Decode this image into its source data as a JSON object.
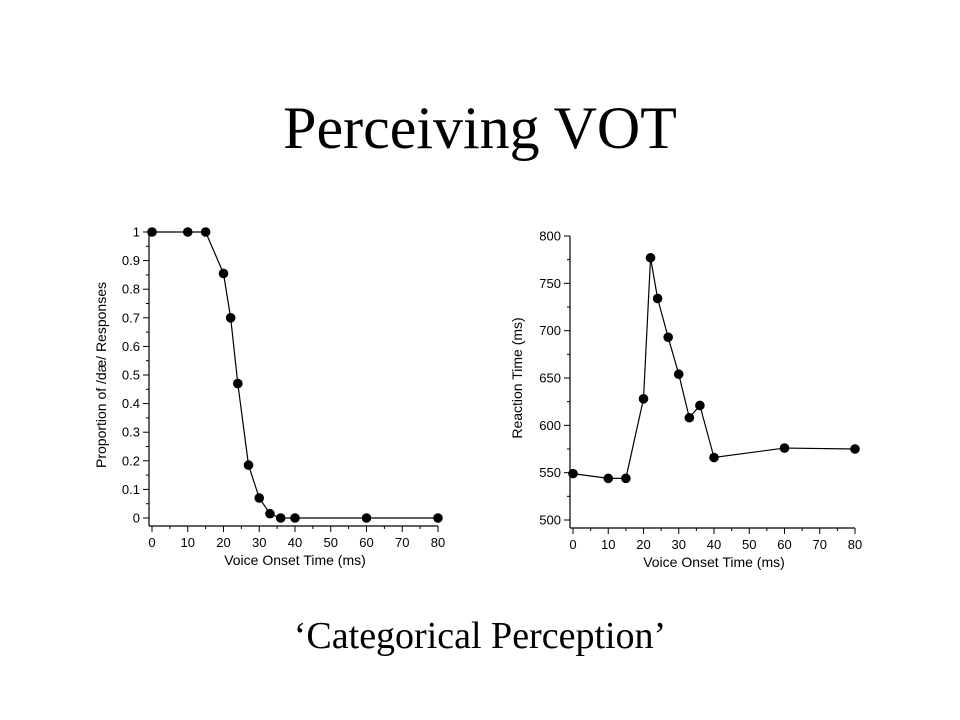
{
  "slide": {
    "title": "Perceiving VOT",
    "caption": "‘Categorical Perception’"
  },
  "chart_data": [
    {
      "type": "line",
      "xlabel": "Voice Onset Time (ms)",
      "ylabel": "Proportion of /dæ/ Responses",
      "xlim": [
        0,
        80
      ],
      "ylim": [
        0,
        1
      ],
      "xticks": [
        "0",
        "10",
        "20",
        "30",
        "40",
        "50",
        "60",
        "70",
        "80"
      ],
      "yticks": [
        "0",
        "0.1",
        "0.2",
        "0.3",
        "0.4",
        "0.5",
        "0.6",
        "0.7",
        "0.8",
        "0.9",
        "1"
      ],
      "x": [
        0,
        10,
        15,
        20,
        22,
        24,
        27,
        30,
        33,
        36,
        40,
        60,
        80
      ],
      "y": [
        1,
        1,
        1,
        0.855,
        0.7,
        0.47,
        0.185,
        0.07,
        0.015,
        0,
        0,
        0,
        0
      ],
      "grid": false,
      "marker": "filled-circle",
      "color": "#000000"
    },
    {
      "type": "line",
      "xlabel": "Voice Onset Time (ms)",
      "ylabel": "Reaction Time (ms)",
      "xlim": [
        0,
        80
      ],
      "ylim": [
        500,
        800
      ],
      "xticks": [
        "0",
        "10",
        "20",
        "30",
        "40",
        "50",
        "60",
        "70",
        "80"
      ],
      "yticks": [
        "500",
        "550",
        "600",
        "650",
        "700",
        "750",
        "800"
      ],
      "x": [
        0,
        10,
        15,
        20,
        22,
        24,
        27,
        30,
        33,
        36,
        40,
        60,
        80
      ],
      "y": [
        549,
        544,
        544,
        628,
        777,
        734,
        693,
        654,
        608,
        621,
        566,
        576,
        575
      ],
      "grid": false,
      "marker": "filled-circle",
      "color": "#000000"
    }
  ]
}
